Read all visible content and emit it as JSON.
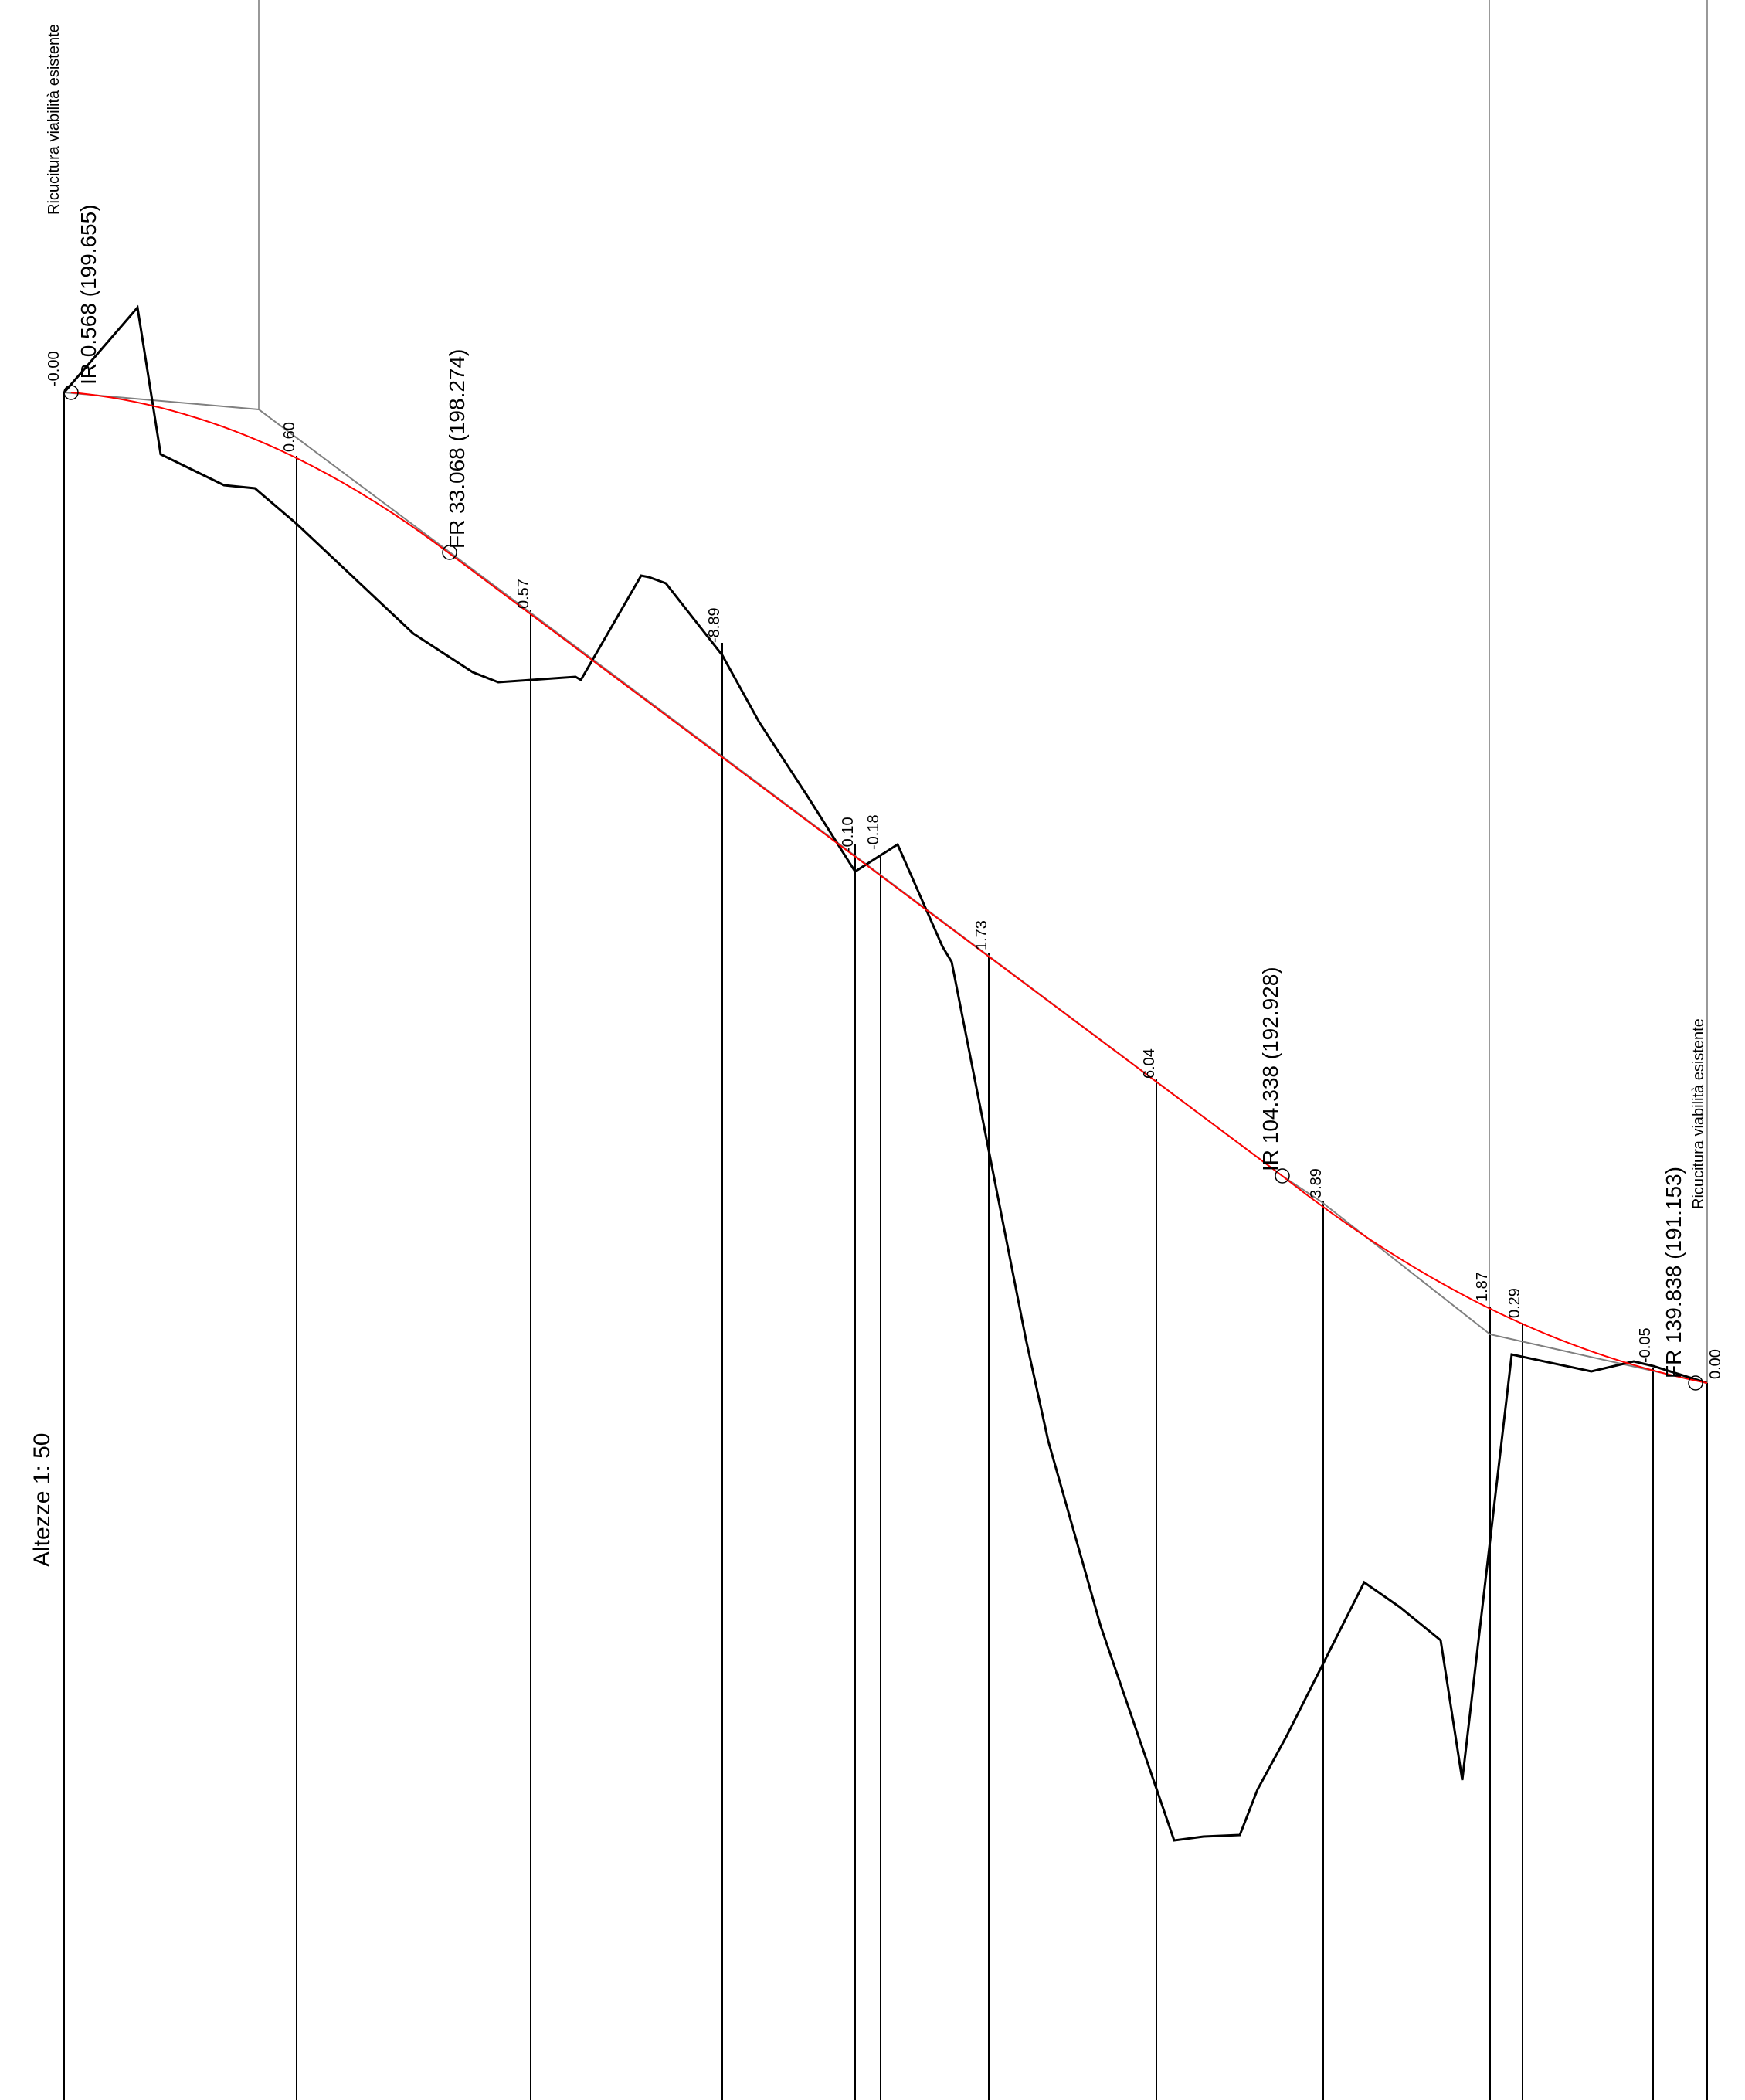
{
  "scale_label": "Altezze 1: 50",
  "endpoint_labels": {
    "start": "Ricucitura viabilità esistente",
    "end": "Ricucitura viabilità esistente"
  },
  "vertical_curve_points": [
    {
      "label": "IR  0.568  (199.655)"
    },
    {
      "label": "FR  33.068  (198.274)"
    },
    {
      "label": "IR  104.338  (192.928)"
    },
    {
      "label": "FR  139.838  (191.153)"
    }
  ],
  "cut_fill_labels": [
    "-0.00",
    "0.60",
    "0.57",
    "-8.89",
    "-0.10",
    "-0.18",
    "1.73",
    "6.04",
    "3.89",
    "1.87",
    "0.29",
    "-0.05",
    "0.00"
  ],
  "colors": {
    "design_profile": "#ff0000",
    "terrain": "#000000",
    "tangent_polygon": "#808080",
    "station_lines": "#000000"
  }
}
